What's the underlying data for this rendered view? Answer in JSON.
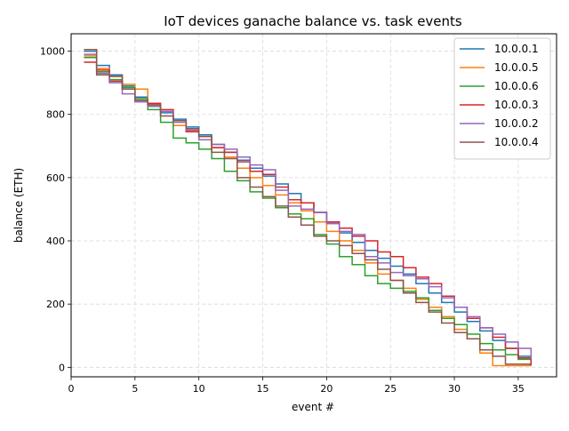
{
  "chart_data": {
    "type": "line",
    "title": "IoT devices ganache balance vs. task events",
    "xlabel": "event #",
    "ylabel": "balance (ETH)",
    "xlim": [
      0,
      38
    ],
    "ylim": [
      -30,
      1055
    ],
    "xticks": [
      0,
      5,
      10,
      15,
      20,
      25,
      30,
      35
    ],
    "yticks": [
      0,
      200,
      400,
      600,
      800,
      1000
    ],
    "grid": true,
    "legend_position": "top-right",
    "series": [
      {
        "name": "10.0.0.1",
        "color": "#1f77b4",
        "x": [
          1,
          2,
          3,
          4,
          5,
          6,
          7,
          8,
          9,
          10,
          11,
          12,
          13,
          14,
          15,
          16,
          17,
          18,
          19,
          20,
          21,
          22,
          23,
          24,
          25,
          26,
          27,
          28,
          29,
          30,
          31,
          32,
          33,
          34,
          35,
          36
        ],
        "values": [
          1000,
          955,
          925,
          890,
          855,
          830,
          805,
          785,
          760,
          735,
          705,
          680,
          655,
          630,
          605,
          580,
          550,
          520,
          490,
          455,
          425,
          395,
          370,
          345,
          320,
          295,
          265,
          235,
          205,
          175,
          145,
          115,
          85,
          60,
          35,
          10
        ]
      },
      {
        "name": "10.0.0.5",
        "color": "#ff7f0e",
        "x": [
          1,
          2,
          3,
          4,
          5,
          6,
          7,
          8,
          9,
          10,
          11,
          12,
          13,
          14,
          15,
          16,
          17,
          18,
          19,
          20,
          21,
          22,
          23,
          24,
          25,
          26,
          27,
          28,
          29,
          30,
          31,
          32,
          33,
          34,
          35,
          36
        ],
        "values": [
          985,
          945,
          920,
          895,
          880,
          830,
          810,
          765,
          750,
          730,
          695,
          665,
          630,
          600,
          575,
          545,
          520,
          495,
          460,
          430,
          400,
          370,
          330,
          295,
          275,
          250,
          215,
          190,
          160,
          120,
          90,
          45,
          5,
          5,
          5,
          5
        ]
      },
      {
        "name": "10.0.0.6",
        "color": "#2ca02c",
        "x": [
          1,
          2,
          3,
          4,
          5,
          6,
          7,
          8,
          9,
          10,
          11,
          12,
          13,
          14,
          15,
          16,
          17,
          18,
          19,
          20,
          21,
          22,
          23,
          24,
          25,
          26,
          27,
          28,
          29,
          30,
          31,
          32,
          33,
          34,
          35,
          36
        ],
        "values": [
          980,
          935,
          910,
          885,
          850,
          815,
          775,
          725,
          710,
          690,
          660,
          620,
          590,
          555,
          535,
          505,
          485,
          470,
          420,
          390,
          350,
          325,
          290,
          265,
          250,
          240,
          220,
          180,
          155,
          135,
          105,
          75,
          55,
          40,
          25,
          15
        ]
      },
      {
        "name": "10.0.0.3",
        "color": "#d62728",
        "x": [
          1,
          2,
          3,
          4,
          5,
          6,
          7,
          8,
          9,
          10,
          11,
          12,
          13,
          14,
          15,
          16,
          17,
          18,
          19,
          20,
          21,
          22,
          23,
          24,
          25,
          26,
          27,
          28,
          29,
          30,
          31,
          32,
          33,
          34,
          35,
          36
        ],
        "values": [
          965,
          940,
          905,
          880,
          840,
          835,
          815,
          780,
          745,
          720,
          695,
          680,
          650,
          620,
          610,
          570,
          530,
          520,
          490,
          460,
          440,
          415,
          400,
          365,
          350,
          315,
          285,
          265,
          225,
          190,
          155,
          125,
          95,
          60,
          30,
          5
        ]
      },
      {
        "name": "10.0.0.2",
        "color": "#9467bd",
        "x": [
          1,
          2,
          3,
          4,
          5,
          6,
          7,
          8,
          9,
          10,
          11,
          12,
          13,
          14,
          15,
          16,
          17,
          18,
          19,
          20,
          21,
          22,
          23,
          24,
          25,
          26,
          27,
          28,
          29,
          30,
          31,
          32,
          33,
          34,
          35,
          36
        ],
        "values": [
          990,
          930,
          900,
          865,
          840,
          825,
          810,
          775,
          750,
          720,
          705,
          690,
          665,
          640,
          625,
          560,
          510,
          500,
          490,
          455,
          430,
          420,
          350,
          330,
          300,
          290,
          280,
          255,
          220,
          190,
          160,
          125,
          105,
          80,
          60,
          25
        ]
      },
      {
        "name": "10.0.0.4",
        "color": "#8c564b",
        "x": [
          1,
          2,
          3,
          4,
          5,
          6,
          7,
          8,
          9,
          10,
          11,
          12,
          13,
          14,
          15,
          16,
          17,
          18,
          19,
          20,
          21,
          22,
          23,
          24,
          25,
          26,
          27,
          28,
          29,
          30,
          31,
          32,
          33,
          34,
          35,
          36
        ],
        "values": [
          1005,
          925,
          920,
          880,
          845,
          830,
          795,
          780,
          755,
          730,
          680,
          660,
          600,
          570,
          540,
          510,
          475,
          450,
          415,
          400,
          385,
          360,
          340,
          310,
          275,
          235,
          205,
          175,
          140,
          110,
          90,
          55,
          35,
          10,
          10,
          10
        ]
      }
    ]
  }
}
